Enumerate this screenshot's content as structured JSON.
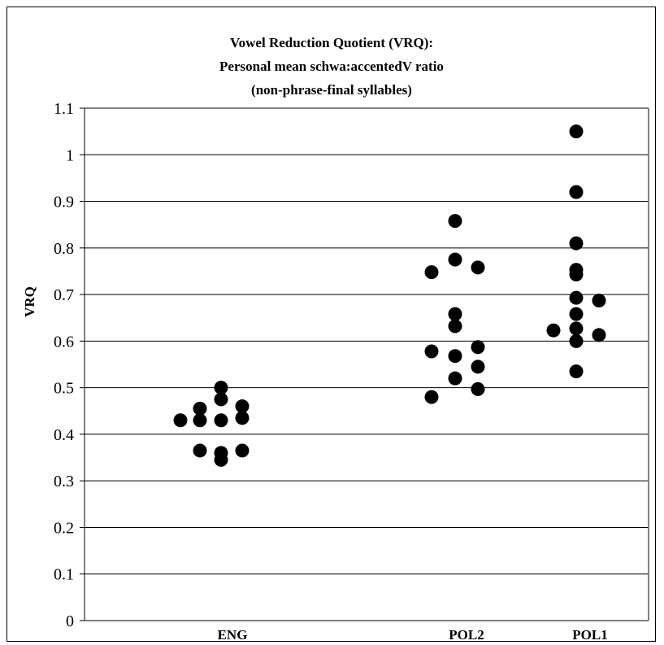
{
  "chart_data": {
    "type": "scatter",
    "title_lines": [
      "Vowel Reduction Quotient (VRQ):",
      "Personal mean schwa:accentedV ratio",
      "(non-phrase-final syllables)"
    ],
    "ylabel": "VRQ",
    "xlabel": "",
    "ylim": [
      0,
      1.1
    ],
    "yticks": [
      "0",
      "0.1",
      "0.2",
      "0.3",
      "0.4",
      "0.5",
      "0.6",
      "0.7",
      "0.8",
      "0.9",
      "1",
      "1.1"
    ],
    "grid": true,
    "legend": "none",
    "marker_color": "#000000",
    "categories": [
      "ENG",
      "POL2",
      "POL1"
    ],
    "series": [
      {
        "category": "ENG",
        "values": [
          0.43,
          0.455,
          0.43,
          0.365,
          0.5,
          0.475,
          0.43,
          0.36,
          0.345,
          0.46,
          0.435,
          0.365
        ]
      },
      {
        "category": "POL2",
        "values": [
          0.48,
          0.578,
          0.748,
          0.52,
          0.568,
          0.632,
          0.658,
          0.775,
          0.858,
          0.497,
          0.545,
          0.587,
          0.758
        ]
      },
      {
        "category": "POL1",
        "values": [
          0.623,
          0.535,
          0.6,
          0.627,
          0.658,
          0.693,
          0.743,
          0.753,
          0.81,
          0.92,
          1.05,
          0.613,
          0.687
        ]
      }
    ]
  }
}
